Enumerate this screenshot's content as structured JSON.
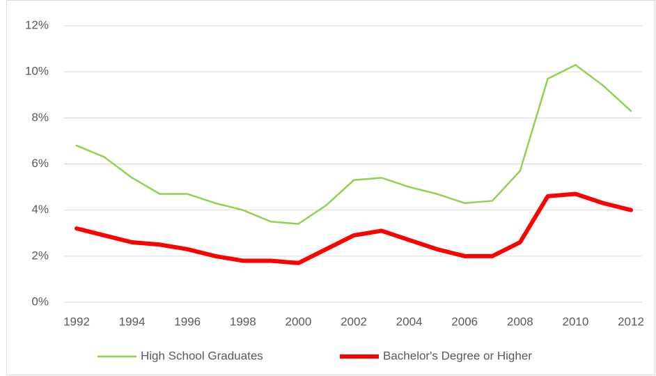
{
  "chart_data": {
    "type": "line",
    "x": [
      1992,
      1993,
      1994,
      1995,
      1996,
      1997,
      1998,
      1999,
      2000,
      2001,
      2002,
      2003,
      2004,
      2005,
      2006,
      2007,
      2008,
      2009,
      2010,
      2011,
      2012
    ],
    "series": [
      {
        "name": "High School Graduates",
        "color": "#92d050",
        "width": 2.5,
        "values": [
          6.8,
          6.3,
          5.4,
          4.7,
          4.7,
          4.3,
          4.0,
          3.5,
          3.4,
          4.2,
          5.3,
          5.4,
          5.0,
          4.7,
          4.3,
          4.4,
          5.7,
          9.7,
          10.3,
          9.4,
          8.3
        ]
      },
      {
        "name": "Bachelor's Degree or Higher",
        "color": "#ff0000",
        "width": 6,
        "values": [
          3.2,
          2.9,
          2.6,
          2.5,
          2.3,
          2.0,
          1.8,
          1.8,
          1.7,
          2.3,
          2.9,
          3.1,
          2.7,
          2.3,
          2.0,
          2.0,
          2.6,
          4.6,
          4.7,
          4.3,
          4.0
        ]
      }
    ],
    "xlim": [
      1992,
      2012
    ],
    "xticks": [
      1992,
      1994,
      1996,
      1998,
      2000,
      2002,
      2004,
      2006,
      2008,
      2010,
      2012
    ],
    "ylim": [
      0,
      12
    ],
    "yticks": [
      {
        "value": 0,
        "label": "0%"
      },
      {
        "value": 2,
        "label": "2%"
      },
      {
        "value": 4,
        "label": "4%"
      },
      {
        "value": 6,
        "label": "6%"
      },
      {
        "value": 8,
        "label": "8%"
      },
      {
        "value": 10,
        "label": "10%"
      },
      {
        "value": 12,
        "label": "12%"
      }
    ],
    "grid": true,
    "legend": "bottom"
  }
}
